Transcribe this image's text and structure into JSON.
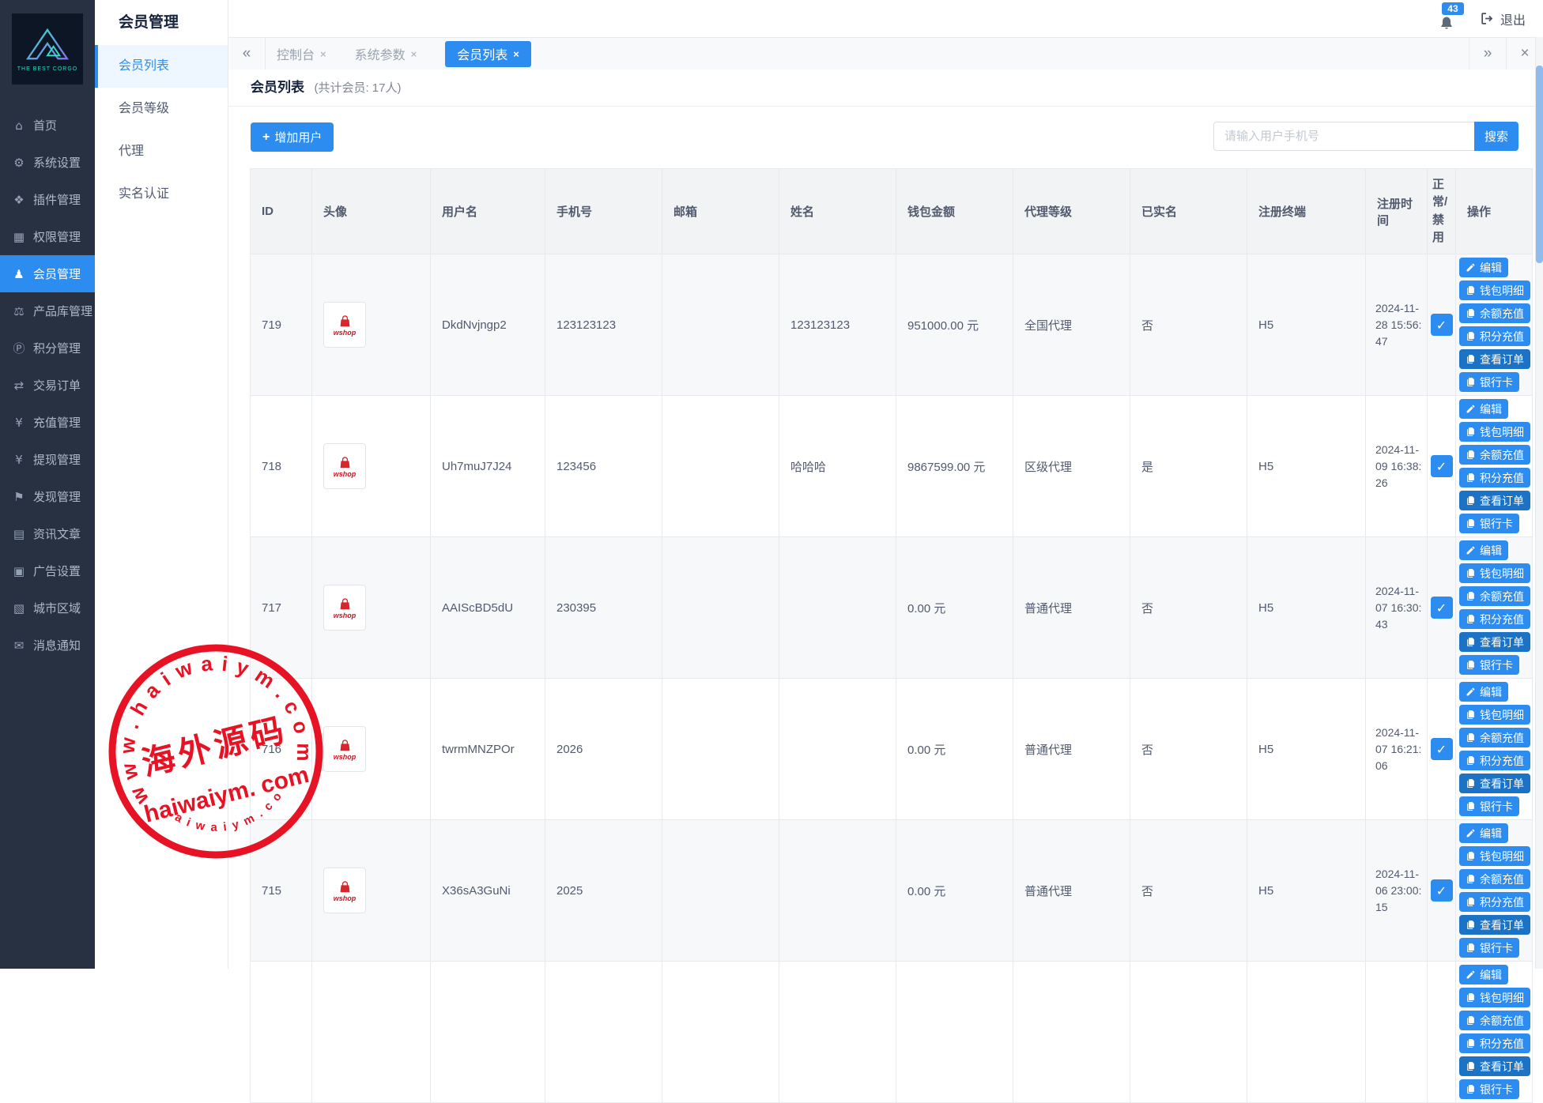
{
  "app": {
    "logo_caption": "THE BEST CORGO",
    "notification_count": "43",
    "logout_label": "退出"
  },
  "sidebar": {
    "items": [
      {
        "key": "home",
        "icon": "home-icon",
        "glyph": "⌂",
        "label": "首页",
        "active": false
      },
      {
        "key": "system-settings",
        "icon": "gear-icon",
        "glyph": "⚙",
        "label": "系统设置",
        "active": false
      },
      {
        "key": "plugin-management",
        "icon": "plugin-icon",
        "glyph": "❖",
        "label": "插件管理",
        "active": false
      },
      {
        "key": "permission-management",
        "icon": "sitemap-icon",
        "glyph": "▦",
        "label": "权限管理",
        "active": false
      },
      {
        "key": "member-management",
        "icon": "users-icon",
        "glyph": "♟",
        "label": "会员管理",
        "active": true
      },
      {
        "key": "product-library",
        "icon": "scales-icon",
        "glyph": "⚖",
        "label": "产品库管理",
        "active": false
      },
      {
        "key": "points-management",
        "icon": "points-icon",
        "glyph": "Ⓟ",
        "label": "积分管理",
        "active": false
      },
      {
        "key": "trade-orders",
        "icon": "exchange-icon",
        "glyph": "⇄",
        "label": "交易订单",
        "active": false
      },
      {
        "key": "recharge-management",
        "icon": "yen-icon",
        "glyph": "¥",
        "label": "充值管理",
        "active": false
      },
      {
        "key": "withdraw-management",
        "icon": "yen-icon",
        "glyph": "¥",
        "label": "提现管理",
        "active": false
      },
      {
        "key": "discover-management",
        "icon": "flag-icon",
        "glyph": "⚑",
        "label": "发现管理",
        "active": false
      },
      {
        "key": "news-articles",
        "icon": "newspaper-icon",
        "glyph": "▤",
        "label": "资讯文章",
        "active": false
      },
      {
        "key": "ad-settings",
        "icon": "image-icon",
        "glyph": "▣",
        "label": "广告设置",
        "active": false
      },
      {
        "key": "city-regions",
        "icon": "map-icon",
        "glyph": "▧",
        "label": "城市区域",
        "active": false
      },
      {
        "key": "message-notifications",
        "icon": "message-icon",
        "glyph": "✉",
        "label": "消息通知",
        "active": false
      }
    ]
  },
  "submenu": {
    "title": "会员管理",
    "items": [
      {
        "key": "member-list",
        "label": "会员列表",
        "active": true
      },
      {
        "key": "member-levels",
        "label": "会员等级",
        "active": false
      },
      {
        "key": "agents",
        "label": "代理",
        "active": false
      },
      {
        "key": "realname-auth",
        "label": "实名认证",
        "active": false
      }
    ]
  },
  "tabs": {
    "items": [
      {
        "key": "console",
        "label": "控制台",
        "active": false
      },
      {
        "key": "system-params",
        "label": "系统参数",
        "active": false
      },
      {
        "key": "member-list",
        "label": "会员列表",
        "active": true
      }
    ]
  },
  "page": {
    "title": "会员列表",
    "subtitle": "(共计会员: 17人)",
    "add_user_label": "增加用户",
    "search_placeholder": "请输入用户手机号",
    "search_label": "搜索"
  },
  "table": {
    "columns": [
      "ID",
      "头像",
      "用户名",
      "手机号",
      "邮箱",
      "姓名",
      "钱包金额",
      "代理等级",
      "已实名",
      "注册终端",
      "注册时间",
      "正常/禁用",
      "操作"
    ],
    "avatar_caption": "wshop",
    "action_labels": {
      "edit": "编辑",
      "wallet_detail": "钱包明细",
      "balance_recharge": "余额充值",
      "points_recharge": "积分充值",
      "view_orders": "查看订单",
      "bank_card": "银行卡"
    },
    "rows": [
      {
        "id": "719",
        "username": "DkdNvjngp2",
        "phone": "123123123",
        "email": "",
        "name": "123123123",
        "wallet": "951000.00 元",
        "agent_level": "全国代理",
        "verified": "否",
        "terminal": "H5",
        "reg_time": "2024-11-28 15:56:47",
        "enabled": true,
        "partial": false
      },
      {
        "id": "718",
        "username": "Uh7muJ7J24",
        "phone": "123456",
        "email": "",
        "name": "哈哈哈",
        "wallet": "9867599.00 元",
        "agent_level": "区级代理",
        "verified": "是",
        "terminal": "H5",
        "reg_time": "2024-11-09 16:38:26",
        "enabled": true,
        "partial": false
      },
      {
        "id": "717",
        "username": "AAIScBD5dU",
        "phone": "230395",
        "email": "",
        "name": "",
        "wallet": "0.00 元",
        "agent_level": "普通代理",
        "verified": "否",
        "terminal": "H5",
        "reg_time": "2024-11-07 16:30:43",
        "enabled": true,
        "partial": false
      },
      {
        "id": "716",
        "username": "twrmMNZPOr",
        "phone": "2026",
        "email": "",
        "name": "",
        "wallet": "0.00 元",
        "agent_level": "普通代理",
        "verified": "否",
        "terminal": "H5",
        "reg_time": "2024-11-07 16:21:06",
        "enabled": true,
        "partial": false
      },
      {
        "id": "715",
        "username": "X36sA3GuNi",
        "phone": "2025",
        "email": "",
        "name": "",
        "wallet": "0.00 元",
        "agent_level": "普通代理",
        "verified": "否",
        "terminal": "H5",
        "reg_time": "2024-11-06 23:00:15",
        "enabled": true,
        "partial": false
      },
      {
        "id": "",
        "username": "",
        "phone": "",
        "email": "",
        "name": "",
        "wallet": "",
        "agent_level": "",
        "verified": "",
        "terminal": "",
        "reg_time": "",
        "enabled": true,
        "partial": true
      }
    ]
  },
  "watermark": {
    "arc_text_top": "w w w . h a i w a i y m . c o m",
    "center_text": "海外源码",
    "line_text": "haiwaiym. com",
    "arc_text_bottom": "h a i w a i y m . c o m",
    "color": "#e60012"
  },
  "colors": {
    "accent": "#2d8cf0",
    "action_dark": "#1c72c4",
    "sidebar_bg": "#273142",
    "stamp_red": "#e60012"
  }
}
